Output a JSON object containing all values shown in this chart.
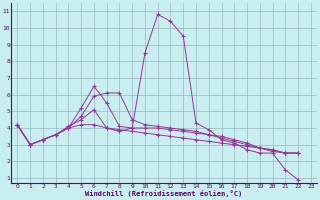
{
  "xlabel": "Windchill (Refroidissement éolien,°C)",
  "bg_color": "#c8eef0",
  "grid_color": "#9ab8c0",
  "line_color": "#993399",
  "xlim": [
    -0.5,
    23.5
  ],
  "ylim": [
    0.7,
    11.5
  ],
  "xticks": [
    0,
    1,
    2,
    3,
    4,
    5,
    6,
    7,
    8,
    9,
    10,
    11,
    12,
    13,
    14,
    15,
    16,
    17,
    18,
    19,
    20,
    21,
    22,
    23
  ],
  "yticks": [
    1,
    2,
    3,
    4,
    5,
    6,
    7,
    8,
    9,
    10,
    11
  ],
  "series": [
    [
      4.2,
      3.0,
      3.3,
      3.6,
      4.1,
      4.5,
      5.1,
      4.0,
      3.8,
      4.0,
      8.5,
      10.8,
      10.4,
      9.5,
      4.3,
      3.9,
      3.3,
      3.1,
      2.7,
      2.5,
      2.5,
      1.5,
      0.9,
      null
    ],
    [
      4.2,
      3.0,
      3.3,
      3.6,
      4.0,
      4.7,
      5.9,
      6.1,
      6.1,
      4.5,
      4.2,
      4.1,
      4.0,
      3.9,
      3.8,
      3.6,
      3.5,
      3.3,
      3.1,
      2.8,
      2.6,
      2.5,
      2.5,
      null
    ],
    [
      4.2,
      3.0,
      3.3,
      3.6,
      4.0,
      5.2,
      6.5,
      5.5,
      4.1,
      4.0,
      4.0,
      4.0,
      3.9,
      3.8,
      3.7,
      3.6,
      3.4,
      3.2,
      3.0,
      2.8,
      2.7,
      2.5,
      2.5,
      null
    ],
    [
      4.2,
      3.0,
      3.3,
      3.6,
      4.0,
      4.2,
      4.2,
      4.0,
      3.9,
      3.8,
      3.7,
      3.6,
      3.5,
      3.4,
      3.3,
      3.2,
      3.1,
      3.0,
      2.9,
      2.8,
      2.7,
      2.5,
      2.5,
      null
    ]
  ]
}
